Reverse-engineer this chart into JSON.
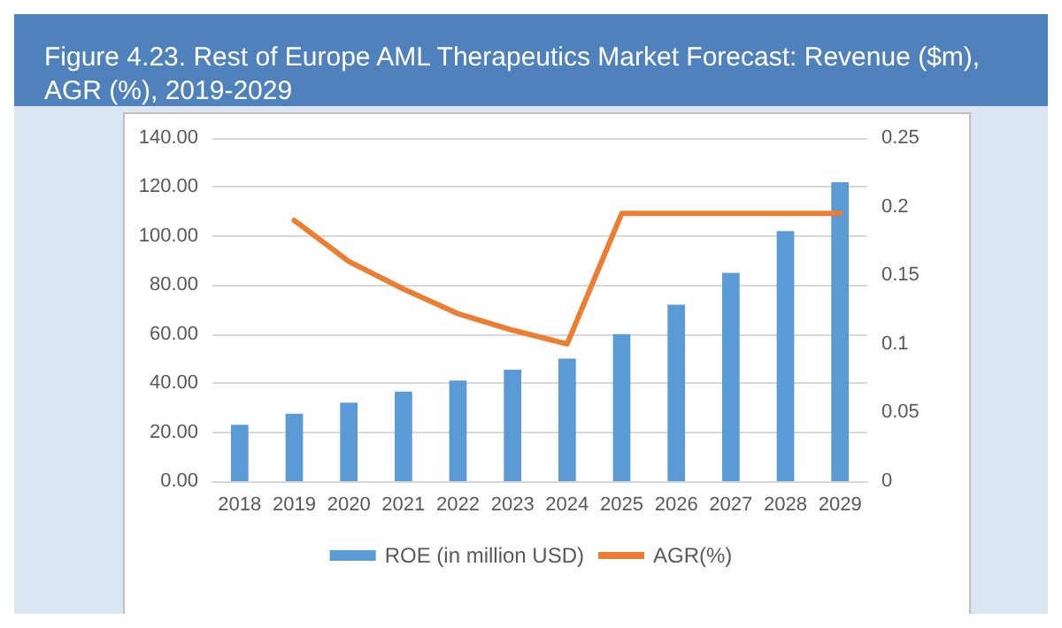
{
  "chart_data": {
    "type": "bar",
    "title": "Figure 4.23. Rest of Europe AML Therapeutics Market Forecast: Revenue ($m), AGR (%), 2019-2029",
    "categories": [
      "2018",
      "2019",
      "2020",
      "2021",
      "2022",
      "2023",
      "2024",
      "2025",
      "2026",
      "2027",
      "2028",
      "2029"
    ],
    "series": [
      {
        "name": "ROE (in million USD)",
        "color": "#5b9bd5",
        "values": [
          23,
          27.5,
          32,
          36.5,
          41,
          45.5,
          50,
          60,
          72,
          85,
          102,
          122
        ]
      },
      {
        "name": "AGR(%)",
        "type": "line",
        "axis": "y2",
        "color": "#ed7d31",
        "values": [
          null,
          0.19,
          0.16,
          0.14,
          0.122,
          0.11,
          0.1,
          0.195,
          0.195,
          0.195,
          0.195,
          0.195
        ]
      }
    ],
    "ylim": [
      0,
      140
    ],
    "yticks": [
      {
        "value": 0,
        "label": "0.00"
      },
      {
        "value": 20,
        "label": "20.00"
      },
      {
        "value": 40,
        "label": "40.00"
      },
      {
        "value": 60,
        "label": "60.00"
      },
      {
        "value": 80,
        "label": "80.00"
      },
      {
        "value": 100,
        "label": "100.00"
      },
      {
        "value": 120,
        "label": "120.00"
      },
      {
        "value": 140,
        "label": "140.00"
      }
    ],
    "y2lim": [
      0,
      0.25
    ],
    "y2ticks": [
      0,
      0.05,
      0.1,
      0.15,
      0.2,
      0.25
    ],
    "grid": "y",
    "legend": "bottom",
    "marker": "none",
    "line_style": "solid"
  }
}
